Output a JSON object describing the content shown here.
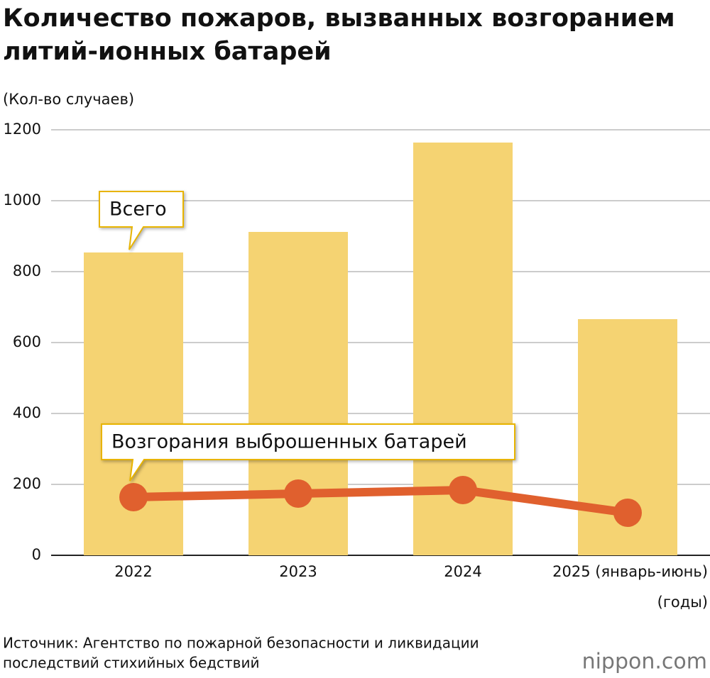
{
  "chart_data": {
    "type": "bar",
    "title": [
      "Количество пожаров, вызванных возгоранием",
      "литий-ионных батарей"
    ],
    "y_label": "(Кол-во случаев)",
    "x_label": "(годы)",
    "categories": [
      "2022",
      "2023",
      "2024",
      "2025 (январь-июнь)"
    ],
    "series": [
      {
        "name": "Всего",
        "type": "bar",
        "color": "#f5d372",
        "values": [
          854,
          912,
          1164,
          666
        ]
      },
      {
        "name": "Возгорания выброшенных батарей",
        "type": "line",
        "color": "#e0602e",
        "values": [
          164,
          174,
          184,
          120
        ]
      }
    ],
    "ylim": [
      0,
      1200
    ],
    "yticks": [
      0,
      200,
      400,
      600,
      800,
      1000,
      1200
    ],
    "grid": true,
    "source": [
      "Источник: Агентство по пожарной безопасности и ликвидации",
      "последствий стихийных бедствий"
    ],
    "logo": "nippon.com"
  }
}
